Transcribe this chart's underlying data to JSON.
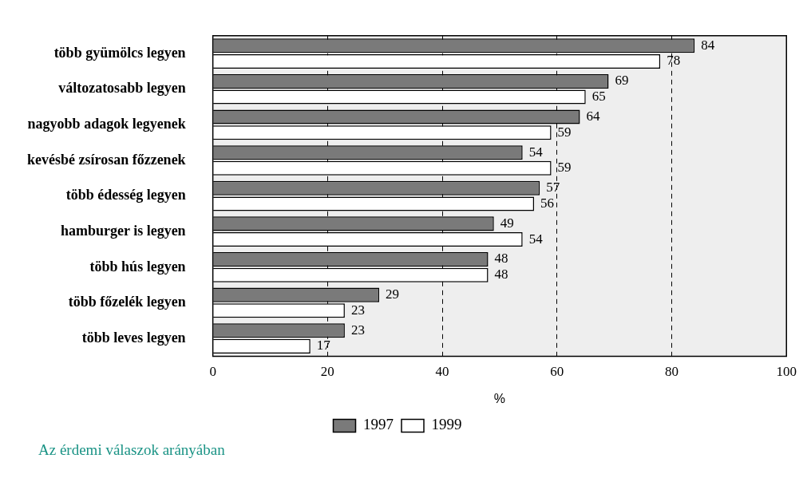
{
  "chart_data": {
    "type": "bar",
    "orientation": "horizontal",
    "xlabel": "%",
    "categories": [
      "több gyümölcs legyen",
      "változatosabb legyen",
      "nagyobb adagok legyenek",
      "kevésbé zsírosan főzzenek",
      "több édesség legyen",
      "hamburger is legyen",
      "több hús legyen",
      "több főzelék legyen",
      "több leves legyen"
    ],
    "series": [
      {
        "name": "1997",
        "color": "#7a7a7a",
        "values": [
          84,
          69,
          64,
          54,
          57,
          49,
          48,
          29,
          23
        ]
      },
      {
        "name": "1999",
        "color": "#ffffff",
        "values": [
          78,
          65,
          59,
          59,
          56,
          54,
          48,
          23,
          17
        ]
      }
    ],
    "xlim": [
      0,
      100
    ],
    "xticks": [
      0,
      20,
      40,
      60,
      80,
      100
    ],
    "grid": "x",
    "line_style": "dashed",
    "legend": "bottom",
    "data_labels": true,
    "annotations": [
      "Az érdemi válaszok arányában"
    ]
  }
}
